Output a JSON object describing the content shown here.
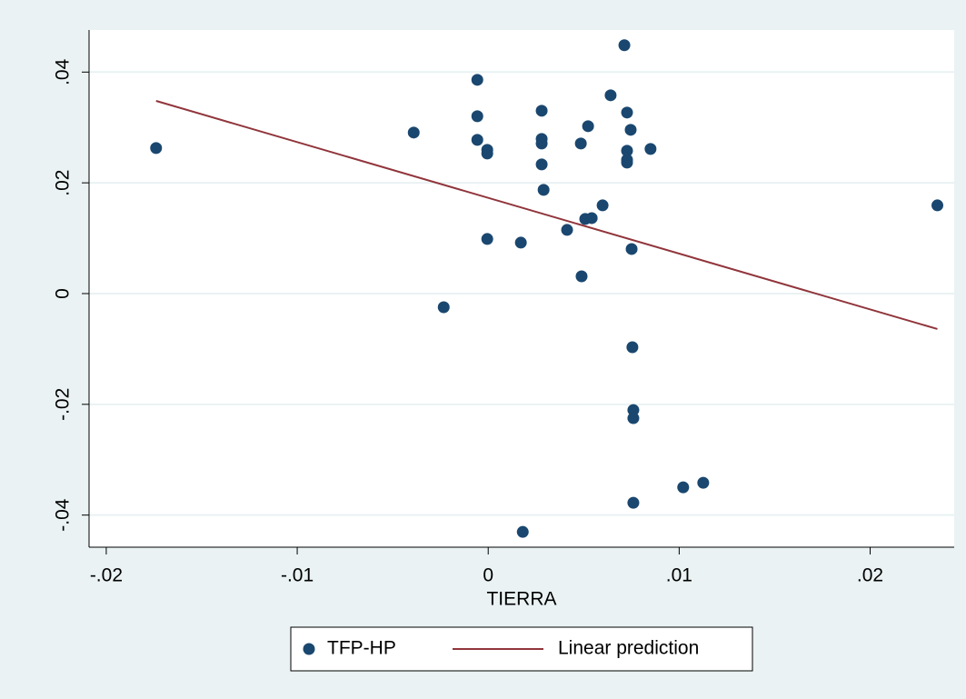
{
  "chart_data": {
    "type": "scatter",
    "x_label": "TIERRA",
    "xlim": [
      -0.0209,
      0.0244
    ],
    "ylim": [
      -0.0458,
      0.0476
    ],
    "xticks": [
      {
        "value": -0.02,
        "label": "-.02"
      },
      {
        "value": -0.01,
        "label": "-.01"
      },
      0,
      {
        "value": 0.01,
        "label": ".01"
      },
      {
        "value": 0.02,
        "label": ".02"
      }
    ],
    "yticks": [
      {
        "value": -0.04,
        "label": "-.04"
      },
      {
        "value": -0.02,
        "label": "-.02"
      },
      0,
      {
        "value": 0.02,
        "label": ".02"
      },
      {
        "value": 0.04,
        "label": ".04"
      }
    ],
    "grid": true,
    "legend": "bottom",
    "series": [
      {
        "name": "TFP-HP",
        "type": "scatter",
        "color": "#1a476f",
        "x": [
          -0.01739,
          -0.0039,
          -0.00233,
          -0.00057,
          -0.00057,
          -0.00057,
          -5e-05,
          -5e-05,
          -5e-05,
          0.00171,
          0.00181,
          0.0028,
          0.0028,
          0.0028,
          0.0028,
          0.0029,
          0.00413,
          0.00485,
          0.00489,
          0.00508,
          0.00523,
          0.00542,
          0.00599,
          0.00641,
          0.00713,
          0.00727,
          0.00727,
          0.00727,
          0.00727,
          0.00746,
          0.00751,
          0.00755,
          0.0076,
          0.0076,
          0.0085,
          0.01021,
          0.01126,
          0.0076,
          0.02352
        ],
        "values": [
          0.02628,
          0.02908,
          -0.00246,
          0.0386,
          0.03203,
          0.02776,
          0.02595,
          0.0253,
          0.00986,
          0.0092,
          -0.04304,
          0.03302,
          0.02793,
          0.0271,
          0.02333,
          0.01873,
          0.0115,
          0.0271,
          0.00312,
          0.01347,
          0.03023,
          0.01363,
          0.01593,
          0.03581,
          0.04485,
          0.03269,
          0.02579,
          0.02366,
          0.02415,
          0.02957,
          0.00805,
          -0.00969,
          -0.02103,
          -0.0225,
          0.02612,
          -0.03499,
          -0.03417,
          -0.03778,
          0.01593
        ]
      },
      {
        "name": "Linear prediction",
        "type": "line",
        "color": "#90353b",
        "x": [
          -0.01739,
          0.02352
        ],
        "values": [
          0.0348,
          -0.0064
        ]
      }
    ]
  }
}
